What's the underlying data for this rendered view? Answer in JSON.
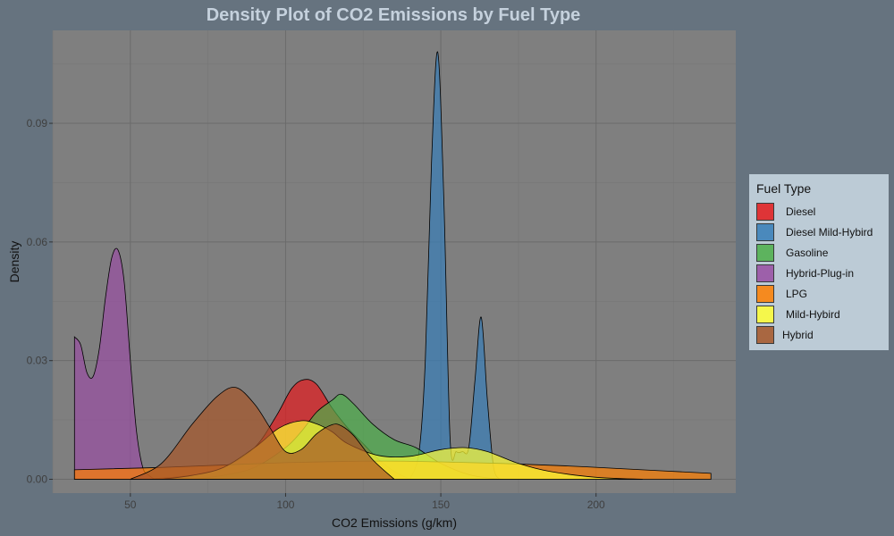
{
  "chart_data": {
    "type": "area",
    "title": "Density Plot of CO2 Emissions by Fuel Type",
    "xlabel": "CO2 Emissions (g/km)",
    "ylabel": "Density",
    "xlim": [
      25,
      245
    ],
    "ylim": [
      -0.0035,
      0.1135
    ],
    "x_ticks": [
      50,
      100,
      150,
      200
    ],
    "y_ticks": [
      0.0,
      0.03,
      0.06,
      0.09
    ],
    "x_tick_labels": [
      "50",
      "100",
      "150",
      "200"
    ],
    "y_tick_labels": [
      "0.00",
      "0.03",
      "0.06",
      "0.09"
    ],
    "grid": true,
    "legend_title": "Fuel Type",
    "legend_position": "right",
    "series": [
      {
        "name": "Diesel",
        "color": "#e41a1c",
        "x": [
          55,
          70,
          80,
          90,
          97,
          102,
          106,
          110,
          115,
          120,
          125,
          130,
          135,
          140
        ],
        "values": [
          0.0,
          0.001,
          0.003,
          0.008,
          0.016,
          0.023,
          0.0252,
          0.024,
          0.018,
          0.013,
          0.009,
          0.005,
          0.002,
          0.0
        ]
      },
      {
        "name": "Diesel Mild-Hybird",
        "color": "#377eb8",
        "x": [
          140,
          143,
          145,
          147,
          149,
          151,
          153,
          155,
          157,
          159,
          161,
          163,
          165,
          167,
          169
        ],
        "values": [
          0.0,
          0.007,
          0.03,
          0.08,
          0.108,
          0.07,
          0.01,
          0.007,
          0.007,
          0.008,
          0.025,
          0.041,
          0.02,
          0.003,
          0.0
        ]
      },
      {
        "name": "Gasoline",
        "color": "#4daf4a",
        "x": [
          70,
          80,
          90,
          100,
          105,
          110,
          115,
          118,
          122,
          128,
          135,
          142,
          150,
          160,
          170
        ],
        "values": [
          0.0,
          0.001,
          0.003,
          0.008,
          0.012,
          0.017,
          0.02,
          0.0215,
          0.019,
          0.014,
          0.01,
          0.008,
          0.004,
          0.001,
          0.0
        ]
      },
      {
        "name": "Hybrid-Plug-in",
        "color": "#984ea3",
        "x": [
          32,
          34,
          36,
          38,
          40,
          42,
          44,
          46,
          48,
          50,
          52,
          54,
          56,
          58,
          60
        ],
        "values": [
          0.036,
          0.034,
          0.027,
          0.026,
          0.033,
          0.046,
          0.056,
          0.058,
          0.05,
          0.03,
          0.012,
          0.003,
          0.001,
          0.0,
          0.0
        ]
      },
      {
        "name": "LPG",
        "color": "#ff7f00",
        "x": [
          32,
          60,
          100,
          130,
          150,
          170,
          190,
          210,
          237
        ],
        "values": [
          0.0024,
          0.003,
          0.0042,
          0.0046,
          0.0044,
          0.004,
          0.0034,
          0.0026,
          0.0015
        ]
      },
      {
        "name": "Mild-Hybird",
        "color": "#ffff33",
        "x": [
          60,
          70,
          80,
          90,
          98,
          105,
          110,
          115,
          120,
          130,
          140,
          150,
          158,
          165,
          175,
          185,
          200,
          215
        ],
        "values": [
          0.0,
          0.001,
          0.003,
          0.008,
          0.013,
          0.0148,
          0.014,
          0.012,
          0.009,
          0.006,
          0.0058,
          0.0075,
          0.008,
          0.007,
          0.004,
          0.002,
          0.0005,
          0.0
        ]
      },
      {
        "name": "Hybrid",
        "color": "#a65628",
        "x": [
          50,
          60,
          70,
          78,
          84,
          90,
          95,
          100,
          105,
          110,
          115,
          118,
          122,
          128,
          135
        ],
        "values": [
          0.0,
          0.004,
          0.014,
          0.021,
          0.0232,
          0.019,
          0.013,
          0.007,
          0.0075,
          0.0115,
          0.0138,
          0.0135,
          0.011,
          0.005,
          0.0
        ]
      }
    ]
  },
  "colors": {
    "page_background": "#66737f",
    "panel_background": "#7f7f7f",
    "grid_major": "#6b6b6b",
    "grid_minor": "#767676",
    "title_color": "#c5d1dd",
    "legend_background": "#bccbd6"
  }
}
